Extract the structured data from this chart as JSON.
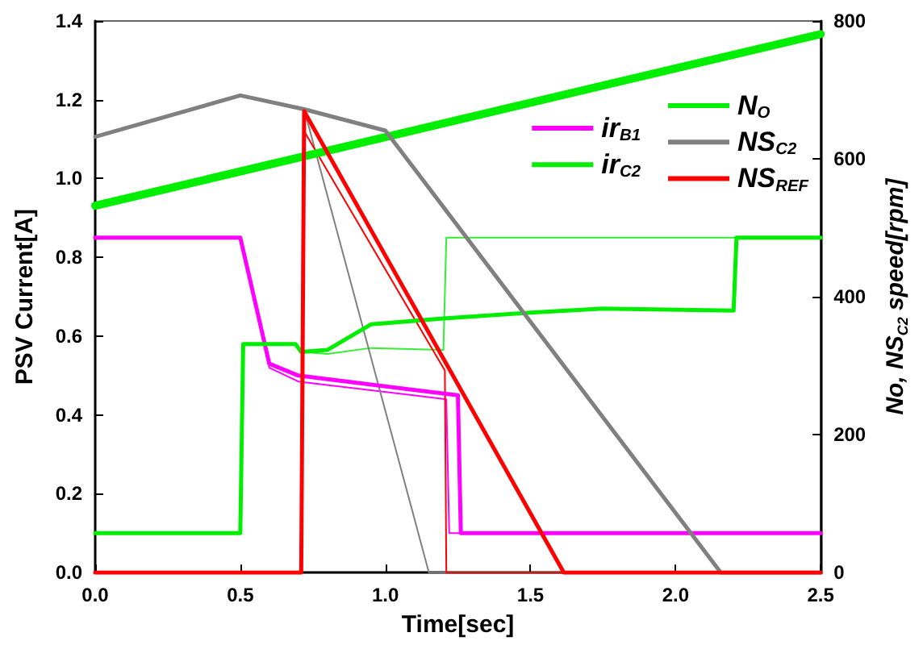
{
  "chart_data": {
    "type": "line",
    "xlabel": "Time[sec]",
    "ylabel": "PSV Current[A]",
    "y2label": "No, NS$_{C2}$ speed[rpm]",
    "xlim": [
      0,
      2.5
    ],
    "xticks": [
      {
        "value": 0,
        "label": "0.0"
      },
      0.5,
      {
        "value": 1,
        "label": "1.0"
      },
      1.5,
      {
        "value": 2,
        "label": "2.0"
      },
      2.5
    ],
    "ylim": [
      0,
      1.4
    ],
    "yticks": [
      {
        "value": 0,
        "label": "0.0"
      },
      0.2,
      0.4,
      0.6,
      0.8,
      {
        "value": 1,
        "label": "1.0"
      },
      1.2,
      1.4
    ],
    "y2lim": [
      0,
      800
    ],
    "y2ticks": [
      0,
      200,
      400,
      600,
      800
    ],
    "grid": false,
    "legend": "top right",
    "marker": "none",
    "line_style": "solid",
    "series": [
      {
        "color": "#ff00ff",
        "x": [
          0,
          0.5,
          0.6,
          0.7,
          1.21,
          1.22,
          2.5
        ],
        "values": [
          0.85,
          0.85,
          0.52,
          0.485,
          0.44,
          0.1,
          0.1
        ]
      },
      {
        "color": "#33ee33",
        "x": [
          0,
          0.5,
          0.51,
          0.69,
          0.71,
          0.8,
          0.95,
          1.2,
          1.21,
          2.5
        ],
        "values": [
          0.1,
          0.1,
          0.58,
          0.58,
          0.56,
          0.555,
          0.57,
          0.565,
          0.85,
          0.85
        ]
      },
      {
        "color": "#808080",
        "axis": "y2",
        "x": [
          0,
          0.5,
          0.72,
          1.15,
          2.5
        ],
        "values": [
          632,
          692,
          672,
          0,
          0
        ]
      },
      {
        "color": "#ff0000",
        "axis": "y2",
        "x": [
          0,
          0.71,
          0.72,
          1.205,
          1.21,
          2.5
        ],
        "values": [
          0,
          0,
          640,
          293,
          0,
          0
        ]
      },
      {
        "name": "ir$_{B1}$",
        "color": "#ff00ff",
        "x": [
          0,
          0.5,
          0.6,
          0.7,
          1.25,
          1.26,
          2.5
        ],
        "values": [
          0.85,
          0.85,
          0.53,
          0.5,
          0.45,
          0.1,
          0.1
        ]
      },
      {
        "name": "ir$_{C2}$",
        "color": "#00ee00",
        "x": [
          0,
          0.5,
          0.51,
          0.69,
          0.71,
          0.8,
          0.95,
          1.2,
          1.5,
          1.75,
          2.2,
          2.21,
          2.5
        ],
        "values": [
          0.1,
          0.1,
          0.58,
          0.58,
          0.56,
          0.565,
          0.63,
          0.645,
          0.66,
          0.67,
          0.665,
          0.85,
          0.85
        ]
      },
      {
        "name": "N$_{O}$",
        "color": "#00ee00",
        "axis": "y2",
        "x": [
          0,
          2.5
        ],
        "values": [
          532,
          781
        ]
      },
      {
        "name": "NS$_{C2}$",
        "color": "#808080",
        "axis": "y2",
        "x": [
          0,
          0.5,
          0.72,
          1.0,
          2.156,
          2.5
        ],
        "values": [
          632,
          692,
          672,
          641,
          0,
          0
        ]
      },
      {
        "name": "NS$_{REF}$",
        "color": "#ff0000",
        "axis": "y2",
        "x": [
          0,
          0.71,
          0.72,
          1.615,
          2.5
        ],
        "values": [
          0,
          0,
          669,
          0,
          0
        ]
      }
    ]
  }
}
